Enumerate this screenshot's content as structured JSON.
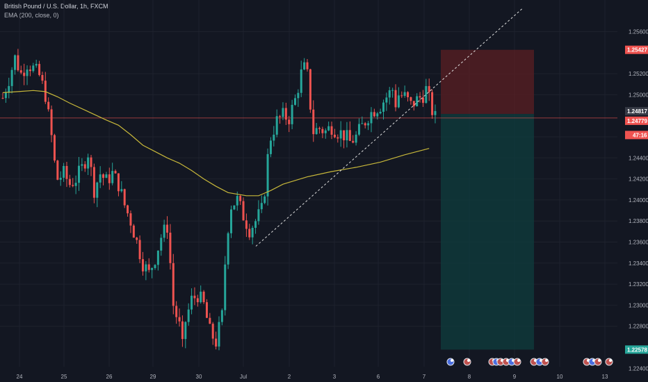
{
  "header": {
    "title": "British Pound / U.S. Dollar, 1h, FXCM",
    "indicator": "EMA (200, close, 0)"
  },
  "colors": {
    "background": "#131722",
    "grid": "#1e222d",
    "up": "#26a69a",
    "down": "#ef5350",
    "ema": "#c8b83a",
    "stop_zone": "#5b1f23",
    "target_zone": "#0f3b3c",
    "trendline": "#e0e0e0"
  },
  "chart_data": {
    "type": "candlestick",
    "symbol": "British Pound / U.S. Dollar",
    "timeframe": "1h",
    "source": "FXCM",
    "y_ticks": [
      "1.25600",
      "1.25200",
      "1.25000",
      "1.24600",
      "1.24400",
      "1.24200",
      "1.24000",
      "1.23800",
      "1.23600",
      "1.23400",
      "1.23200",
      "1.23000",
      "1.22800",
      "1.22400"
    ],
    "ylim": [
      1.223,
      1.2585
    ],
    "x_ticks": [
      "24",
      "25",
      "26",
      "29",
      "30",
      "Jul",
      "2",
      "3",
      "6",
      "7",
      "8",
      "9",
      "10",
      "13"
    ],
    "price_labels": [
      {
        "text": "1.25427",
        "value": 1.25427,
        "kind": "stop"
      },
      {
        "text": "1.24817",
        "value": 1.24817,
        "kind": "entry"
      },
      {
        "text": "1.24779",
        "value": 1.24779,
        "kind": "last"
      },
      {
        "text": "47:16",
        "value": 1.2467,
        "kind": "countdown"
      },
      {
        "text": "1.22578",
        "value": 1.22578,
        "kind": "target"
      }
    ],
    "short_position": {
      "entry": 1.24817,
      "stop": 1.25427,
      "target": 1.22578,
      "start_index": 142
    },
    "trendline": [
      {
        "index": 81,
        "price": 1.2356
      },
      {
        "index": 165,
        "price": 1.2585
      }
    ],
    "ema": {
      "name": "EMA (200, close, 0)",
      "values": [
        [
          0,
          1.2502
        ],
        [
          5,
          1.2503
        ],
        [
          10,
          1.2504
        ],
        [
          14,
          1.2503
        ],
        [
          18,
          1.2498
        ],
        [
          22,
          1.2492
        ],
        [
          28,
          1.2484
        ],
        [
          34,
          1.2476
        ],
        [
          38,
          1.2471
        ],
        [
          42,
          1.2462
        ],
        [
          46,
          1.2452
        ],
        [
          50,
          1.2446
        ],
        [
          54,
          1.244
        ],
        [
          58,
          1.2435
        ],
        [
          62,
          1.2428
        ],
        [
          66,
          1.242
        ],
        [
          70,
          1.2413
        ],
        [
          74,
          1.2407
        ],
        [
          80,
          1.2404
        ],
        [
          84,
          1.2404
        ],
        [
          88,
          1.2409
        ],
        [
          92,
          1.2415
        ],
        [
          100,
          1.2422
        ],
        [
          108,
          1.2427
        ],
        [
          116,
          1.2431
        ],
        [
          124,
          1.2436
        ],
        [
          132,
          1.2443
        ],
        [
          140,
          1.2449
        ]
      ]
    },
    "candles_close": [
      [
        0,
        1.2497
      ],
      [
        2,
        1.2515
      ],
      [
        4,
        1.2535
      ],
      [
        6,
        1.252
      ],
      [
        8,
        1.253
      ],
      [
        10,
        1.2525
      ],
      [
        12,
        1.2518
      ],
      [
        14,
        1.25
      ],
      [
        15,
        1.248
      ],
      [
        16,
        1.246
      ],
      [
        17,
        1.2435
      ],
      [
        18,
        1.242
      ],
      [
        20,
        1.2425
      ],
      [
        22,
        1.2415
      ],
      [
        24,
        1.242
      ],
      [
        26,
        1.243
      ],
      [
        28,
        1.2445
      ],
      [
        30,
        1.241
      ],
      [
        32,
        1.2425
      ],
      [
        34,
        1.2418
      ],
      [
        36,
        1.2425
      ],
      [
        38,
        1.2415
      ],
      [
        40,
        1.2395
      ],
      [
        42,
        1.238
      ],
      [
        44,
        1.236
      ],
      [
        46,
        1.234
      ],
      [
        48,
        1.233
      ],
      [
        50,
        1.2345
      ],
      [
        52,
        1.2365
      ],
      [
        54,
        1.2375
      ],
      [
        55,
        1.234
      ],
      [
        56,
        1.23
      ],
      [
        58,
        1.228
      ],
      [
        59,
        1.226
      ],
      [
        60,
        1.2285
      ],
      [
        62,
        1.2305
      ],
      [
        64,
        1.231
      ],
      [
        66,
        1.23
      ],
      [
        68,
        1.2275
      ],
      [
        70,
        1.2265
      ],
      [
        72,
        1.229
      ],
      [
        73,
        1.234
      ],
      [
        74,
        1.2375
      ],
      [
        75,
        1.2395
      ],
      [
        77,
        1.24
      ],
      [
        79,
        1.2385
      ],
      [
        81,
        1.2372
      ],
      [
        83,
        1.238
      ],
      [
        85,
        1.239
      ],
      [
        86,
        1.241
      ],
      [
        87,
        1.244
      ],
      [
        88,
        1.246
      ],
      [
        90,
        1.2475
      ],
      [
        92,
        1.248
      ],
      [
        94,
        1.2478
      ],
      [
        96,
        1.2495
      ],
      [
        98,
        1.252
      ],
      [
        99,
        1.2525
      ],
      [
        100,
        1.2518
      ],
      [
        101,
        1.249
      ],
      [
        102,
        1.2465
      ],
      [
        104,
        1.2468
      ],
      [
        106,
        1.2465
      ],
      [
        108,
        1.247
      ],
      [
        110,
        1.2465
      ],
      [
        112,
        1.2462
      ],
      [
        114,
        1.2455
      ],
      [
        116,
        1.246
      ],
      [
        118,
        1.247
      ],
      [
        120,
        1.248
      ],
      [
        122,
        1.2486
      ],
      [
        124,
        1.249
      ],
      [
        126,
        1.2498
      ],
      [
        128,
        1.2505
      ],
      [
        129,
        1.2492
      ],
      [
        130,
        1.25
      ],
      [
        132,
        1.2498
      ],
      [
        134,
        1.249
      ],
      [
        136,
        1.2495
      ],
      [
        138,
        1.25
      ],
      [
        139,
        1.2505
      ],
      [
        140,
        1.2495
      ],
      [
        141,
        1.2485
      ],
      [
        142,
        1.2478
      ]
    ],
    "events_x_ticks": [
      "7",
      "8",
      "8",
      "9",
      "9",
      "9",
      "10",
      "10",
      "13",
      "13",
      "13"
    ]
  },
  "status": {
    "last_price": "1.24779",
    "countdown": "47:16"
  }
}
